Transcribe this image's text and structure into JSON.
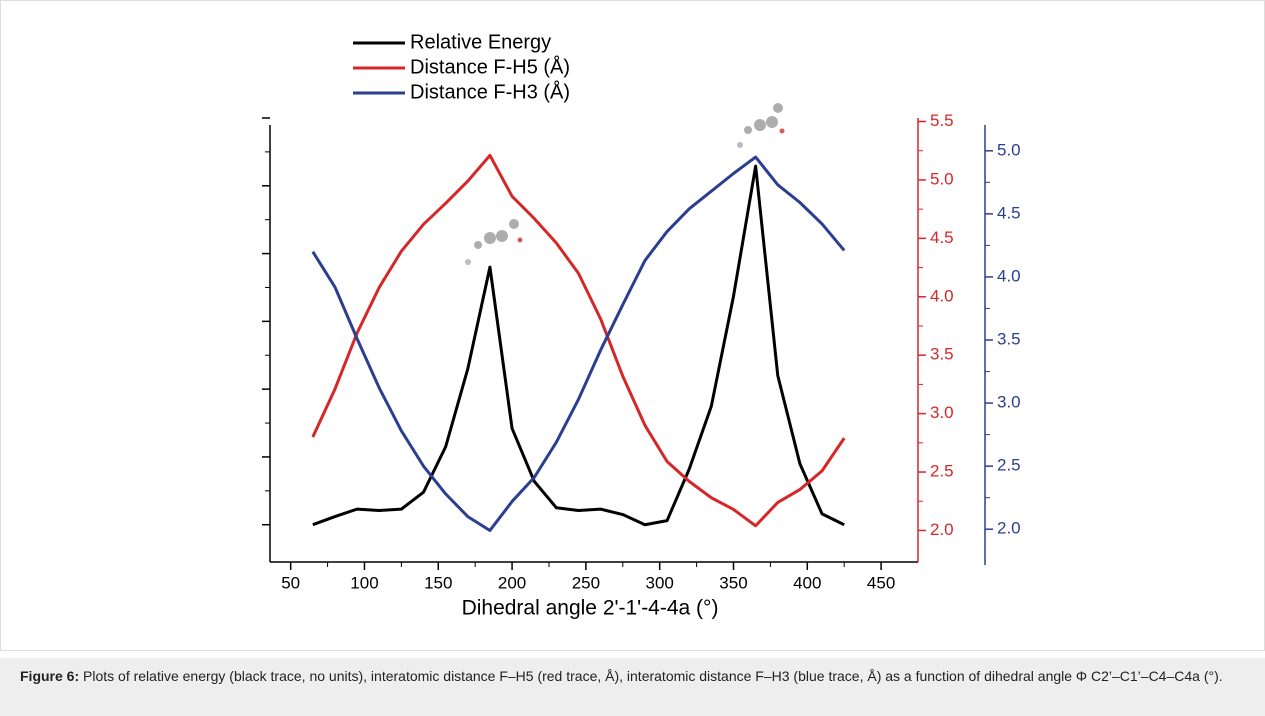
{
  "chart_data": {
    "type": "line",
    "xlabel": "Dihedral angle 2'-1'-4-4a (°)",
    "x": [
      65,
      80,
      95,
      110,
      125,
      140,
      155,
      170,
      185,
      200,
      215,
      230,
      245,
      260,
      275,
      290,
      305,
      320,
      335,
      350,
      365,
      380,
      395,
      410,
      425
    ],
    "xlim": [
      36,
      475
    ],
    "xticks": [
      50,
      100,
      150,
      200,
      250,
      300,
      350,
      400,
      450
    ],
    "ylim": [
      -0.55,
      6
    ],
    "yticks": [
      0,
      1,
      2,
      3,
      4,
      5,
      6
    ],
    "y2lim": [
      1.73,
      5.53
    ],
    "y2ticks": [
      {
        "value": 2,
        "label": "2.0"
      },
      2.5,
      {
        "value": 3,
        "label": "3.0"
      },
      3.5,
      {
        "value": 4,
        "label": "4.0"
      },
      4.5,
      {
        "value": 5,
        "label": "5.0"
      },
      5.5
    ],
    "y2color": "#d62728",
    "y3lim": [
      1.74,
      5.26
    ],
    "y3ticks": [
      {
        "value": 2,
        "label": "2.0"
      },
      2.5,
      {
        "value": 3,
        "label": "3.0"
      },
      3.5,
      {
        "value": 4,
        "label": "4.0"
      },
      4.5,
      {
        "value": 5,
        "label": "5.0"
      }
    ],
    "y3color": "#2b3e8f",
    "series": [
      {
        "name": "Relative Energy",
        "color": "#000000",
        "axis": "y",
        "values": [
          0.0,
          0.12,
          0.23,
          0.21,
          0.23,
          0.48,
          1.15,
          2.3,
          3.8,
          1.42,
          0.64,
          0.25,
          0.21,
          0.23,
          0.15,
          0.0,
          0.06,
          0.82,
          1.75,
          3.37,
          5.29,
          2.2,
          0.9,
          0.16,
          0.0
        ]
      },
      {
        "name": "Distance F-H5 (Å)",
        "color": "#d62728",
        "axis": "y2",
        "values": [
          2.8,
          3.21,
          3.69,
          4.08,
          4.39,
          4.62,
          4.8,
          4.99,
          5.21,
          4.86,
          4.67,
          4.46,
          4.2,
          3.81,
          3.32,
          2.9,
          2.59,
          2.42,
          2.28,
          2.18,
          2.04,
          2.24,
          2.35,
          2.51,
          2.79
        ]
      },
      {
        "name": "Distance F-H3 (Å)",
        "color": "#2b3e8f",
        "axis": "y3",
        "values": [
          4.2,
          3.92,
          3.51,
          3.12,
          2.78,
          2.5,
          2.28,
          2.1,
          1.99,
          2.22,
          2.41,
          2.69,
          3.03,
          3.42,
          3.78,
          4.13,
          4.36,
          4.54,
          4.68,
          4.82,
          4.95,
          4.73,
          4.59,
          4.42,
          4.21
        ]
      }
    ],
    "legend": "top"
  },
  "caption": {
    "label": "Figure 6:",
    "text": "Plots of relative energy (black trace, no units), interatomic distance F–H5 (red trace, Å), interatomic distance F–H3 (blue trace, Å) as a function of dihedral angle Φ C2’–C1’–C4–C4a (°)."
  }
}
